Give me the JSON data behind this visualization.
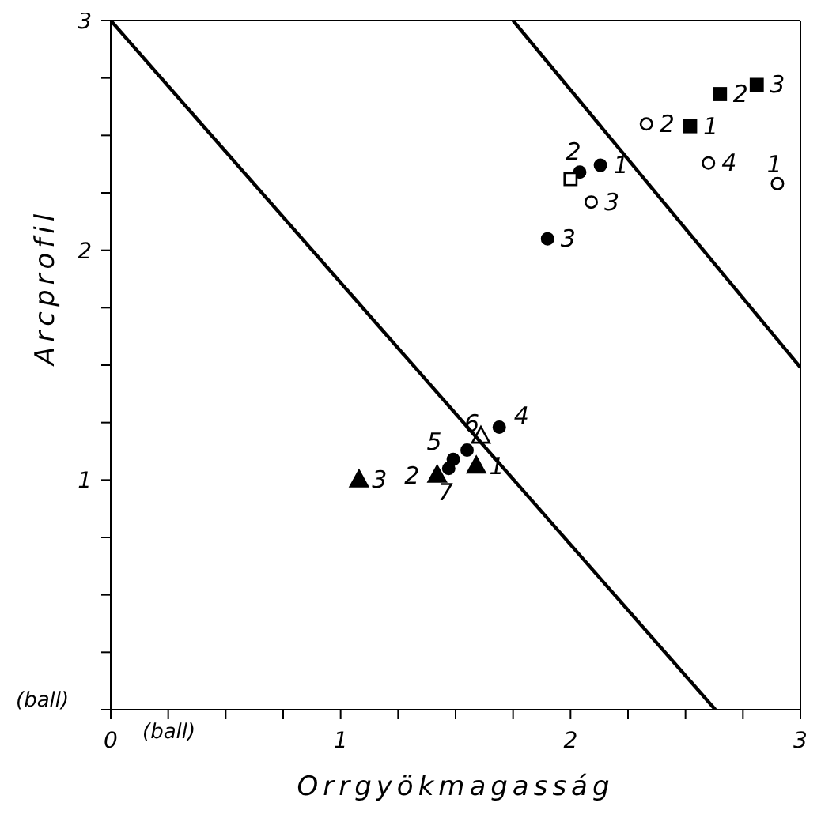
{
  "chart_data": {
    "type": "scatter",
    "xlabel": "Orrgyökmagasság",
    "ylabel": "Arcprofil",
    "annotations": [
      "(ball)",
      "(ball)",
      {
        "text": "1",
        "x": 2.52,
        "y": 2.54
      },
      {
        "text": "2",
        "x": 2.65,
        "y": 2.68
      },
      {
        "text": "3",
        "x": 2.81,
        "y": 2.72
      },
      {
        "text": "2",
        "x": 2.33,
        "y": 2.55
      },
      {
        "text": "4",
        "x": 2.6,
        "y": 2.38
      },
      {
        "text": "1",
        "x": 2.9,
        "y": 2.29
      },
      {
        "text": "3",
        "x": 2.09,
        "y": 2.21
      },
      {
        "text": "1",
        "x": 2.13,
        "y": 2.37
      },
      {
        "text": "2",
        "x": 2.04,
        "y": 2.34
      },
      {
        "text": "3",
        "x": 1.9,
        "y": 2.05
      },
      {
        "text": "4",
        "x": 1.69,
        "y": 1.23
      },
      {
        "text": "5",
        "x": 1.49,
        "y": 1.09
      },
      {
        "text": "6",
        "x": 1.55,
        "y": 1.13
      },
      {
        "text": "7",
        "x": 1.47,
        "y": 1.05
      },
      {
        "text": "3",
        "x": 1.08,
        "y": 1.0
      },
      {
        "text": "2",
        "x": 1.42,
        "y": 1.02
      },
      {
        "text": "1",
        "x": 1.59,
        "y": 1.06
      }
    ],
    "xlim": [
      0,
      3
    ],
    "ylim": [
      0,
      3
    ],
    "xticks": [
      0,
      {
        "value": 0.25,
        "label": null
      },
      {
        "value": 0.5,
        "label": null
      },
      {
        "value": 0.75,
        "label": null
      },
      1,
      {
        "value": 1.25,
        "label": null
      },
      {
        "value": 1.5,
        "label": null
      },
      {
        "value": 1.75,
        "label": null
      },
      2,
      {
        "value": 2.25,
        "label": null
      },
      {
        "value": 2.5,
        "label": null
      },
      {
        "value": 2.75,
        "label": null
      },
      3
    ],
    "yticks": [
      {
        "value": 0,
        "label": null
      },
      {
        "value": 0.25,
        "label": null
      },
      {
        "value": 0.5,
        "label": null
      },
      {
        "value": 0.75,
        "label": null
      },
      1,
      {
        "value": 1.25,
        "label": null
      },
      {
        "value": 1.5,
        "label": null
      },
      {
        "value": 1.75,
        "label": null
      },
      2,
      {
        "value": 2.25,
        "label": null
      },
      {
        "value": 2.5,
        "label": null
      },
      {
        "value": 2.75,
        "label": null
      },
      3
    ],
    "series": [
      {
        "marker": "square",
        "color": "#000000",
        "x": [
          2.52,
          2.65,
          2.81
        ],
        "values": [
          2.54,
          2.68,
          2.72
        ]
      },
      {
        "marker": "circle",
        "color": "#ffffff",
        "x": [
          2.33,
          2.6,
          2.9,
          2.09
        ],
        "values": [
          2.55,
          2.38,
          2.29,
          2.21
        ]
      },
      {
        "marker": "circle",
        "color": "#000000",
        "x": [
          2.13,
          2.04,
          1.9,
          1.69,
          1.49,
          1.55,
          1.47
        ],
        "values": [
          2.37,
          2.34,
          2.05,
          1.23,
          1.09,
          1.13,
          1.05
        ]
      },
      {
        "marker": "square",
        "color": "#ffffff",
        "x": [
          2.0
        ],
        "values": [
          2.31
        ]
      },
      {
        "marker": "triangle",
        "color": "#000000",
        "x": [
          1.08,
          1.42,
          1.59
        ],
        "values": [
          1.0,
          1.02,
          1.06
        ]
      },
      {
        "marker": "triangle",
        "color": "#ffffff",
        "x": [
          1.61
        ],
        "values": [
          1.19
        ]
      },
      {
        "type": "line",
        "marker": "none",
        "color": "#000000",
        "x": [
          0,
          2.63
        ],
        "values": [
          3,
          0
        ]
      },
      {
        "type": "line",
        "marker": "none",
        "color": "#000000",
        "x": [
          1.75,
          3
        ],
        "values": [
          3,
          1.49
        ]
      }
    ]
  }
}
